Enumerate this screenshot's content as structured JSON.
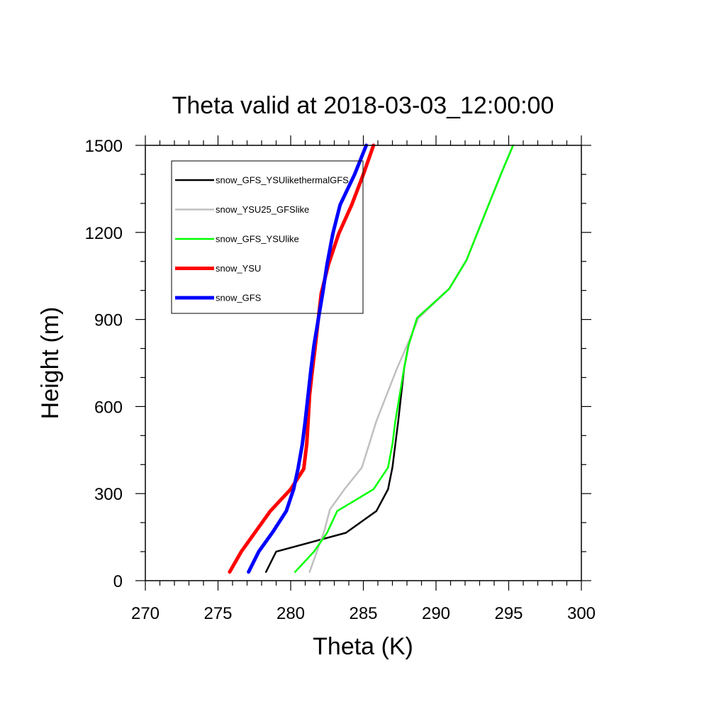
{
  "chart_data": {
    "type": "line",
    "title": "Theta valid at 2018-03-03_12:00:00",
    "xlabel": "Theta (K)",
    "ylabel": "Height (m)",
    "xlim": [
      270,
      300
    ],
    "ylim": [
      0,
      1500
    ],
    "x_ticks": [
      270,
      275,
      280,
      285,
      290,
      295,
      300
    ],
    "y_ticks": [
      0,
      300,
      600,
      900,
      1200,
      1500
    ],
    "grid": false,
    "legend_position": "top-left",
    "series": [
      {
        "name": "snow_GFS_YSUlikethermalGFS",
        "color": "#000000",
        "width": 2.5,
        "points": [
          [
            278.3,
            30
          ],
          [
            279.0,
            100
          ],
          [
            283.8,
            165
          ],
          [
            285.9,
            240
          ],
          [
            286.7,
            315
          ],
          [
            287.0,
            390
          ],
          [
            287.2,
            470
          ],
          [
            287.4,
            550
          ],
          [
            287.6,
            640
          ],
          [
            287.8,
            730
          ],
          [
            288.1,
            810
          ],
          [
            288.7,
            905
          ],
          [
            289.8,
            955
          ],
          [
            290.9,
            1005
          ],
          [
            292.1,
            1105
          ],
          [
            292.9,
            1205
          ],
          [
            293.7,
            1305
          ],
          [
            294.5,
            1405
          ],
          [
            295.3,
            1500
          ]
        ]
      },
      {
        "name": "snow_YSU25_GFSlike",
        "color": "#c0c0c0",
        "width": 2.5,
        "points": [
          [
            281.3,
            30
          ],
          [
            281.8,
            100
          ],
          [
            282.3,
            170
          ],
          [
            282.7,
            245
          ],
          [
            283.7,
            315
          ],
          [
            284.9,
            390
          ],
          [
            285.4,
            470
          ],
          [
            285.9,
            550
          ],
          [
            286.6,
            640
          ],
          [
            287.3,
            730
          ],
          [
            288.0,
            810
          ],
          [
            288.8,
            905
          ],
          [
            290.9,
            1005
          ],
          [
            292.1,
            1105
          ],
          [
            292.9,
            1205
          ],
          [
            293.7,
            1305
          ],
          [
            294.5,
            1405
          ],
          [
            295.3,
            1500
          ]
        ]
      },
      {
        "name": "snow_GFS_YSUlike",
        "color": "#00ff00",
        "width": 2.5,
        "points": [
          [
            280.3,
            30
          ],
          [
            281.6,
            100
          ],
          [
            282.5,
            165
          ],
          [
            283.2,
            240
          ],
          [
            285.7,
            315
          ],
          [
            286.7,
            390
          ],
          [
            287.0,
            470
          ],
          [
            287.2,
            550
          ],
          [
            287.5,
            640
          ],
          [
            287.8,
            730
          ],
          [
            288.1,
            810
          ],
          [
            288.7,
            905
          ],
          [
            290.9,
            1005
          ],
          [
            292.1,
            1105
          ],
          [
            292.9,
            1205
          ],
          [
            293.7,
            1305
          ],
          [
            294.5,
            1405
          ],
          [
            295.3,
            1500
          ]
        ]
      },
      {
        "name": "snow_YSU",
        "color": "#ff0000",
        "width": 5,
        "points": [
          [
            275.8,
            30
          ],
          [
            276.6,
            100
          ],
          [
            277.6,
            170
          ],
          [
            278.6,
            240
          ],
          [
            280.0,
            315
          ],
          [
            280.9,
            385
          ],
          [
            281.1,
            470
          ],
          [
            281.2,
            550
          ],
          [
            281.3,
            640
          ],
          [
            281.5,
            730
          ],
          [
            281.7,
            810
          ],
          [
            281.9,
            900
          ],
          [
            282.1,
            990
          ],
          [
            282.6,
            1090
          ],
          [
            283.3,
            1195
          ],
          [
            284.2,
            1295
          ],
          [
            285.0,
            1400
          ],
          [
            285.7,
            1500
          ]
        ]
      },
      {
        "name": "snow_GFS",
        "color": "#0000ff",
        "width": 5,
        "points": [
          [
            277.1,
            30
          ],
          [
            277.8,
            100
          ],
          [
            278.8,
            170
          ],
          [
            279.7,
            240
          ],
          [
            280.2,
            315
          ],
          [
            280.5,
            385
          ],
          [
            280.8,
            470
          ],
          [
            281.0,
            550
          ],
          [
            281.2,
            640
          ],
          [
            281.4,
            730
          ],
          [
            281.6,
            810
          ],
          [
            281.9,
            900
          ],
          [
            282.2,
            990
          ],
          [
            282.5,
            1090
          ],
          [
            282.9,
            1195
          ],
          [
            283.4,
            1295
          ],
          [
            284.4,
            1400
          ],
          [
            285.2,
            1500
          ]
        ]
      }
    ]
  }
}
